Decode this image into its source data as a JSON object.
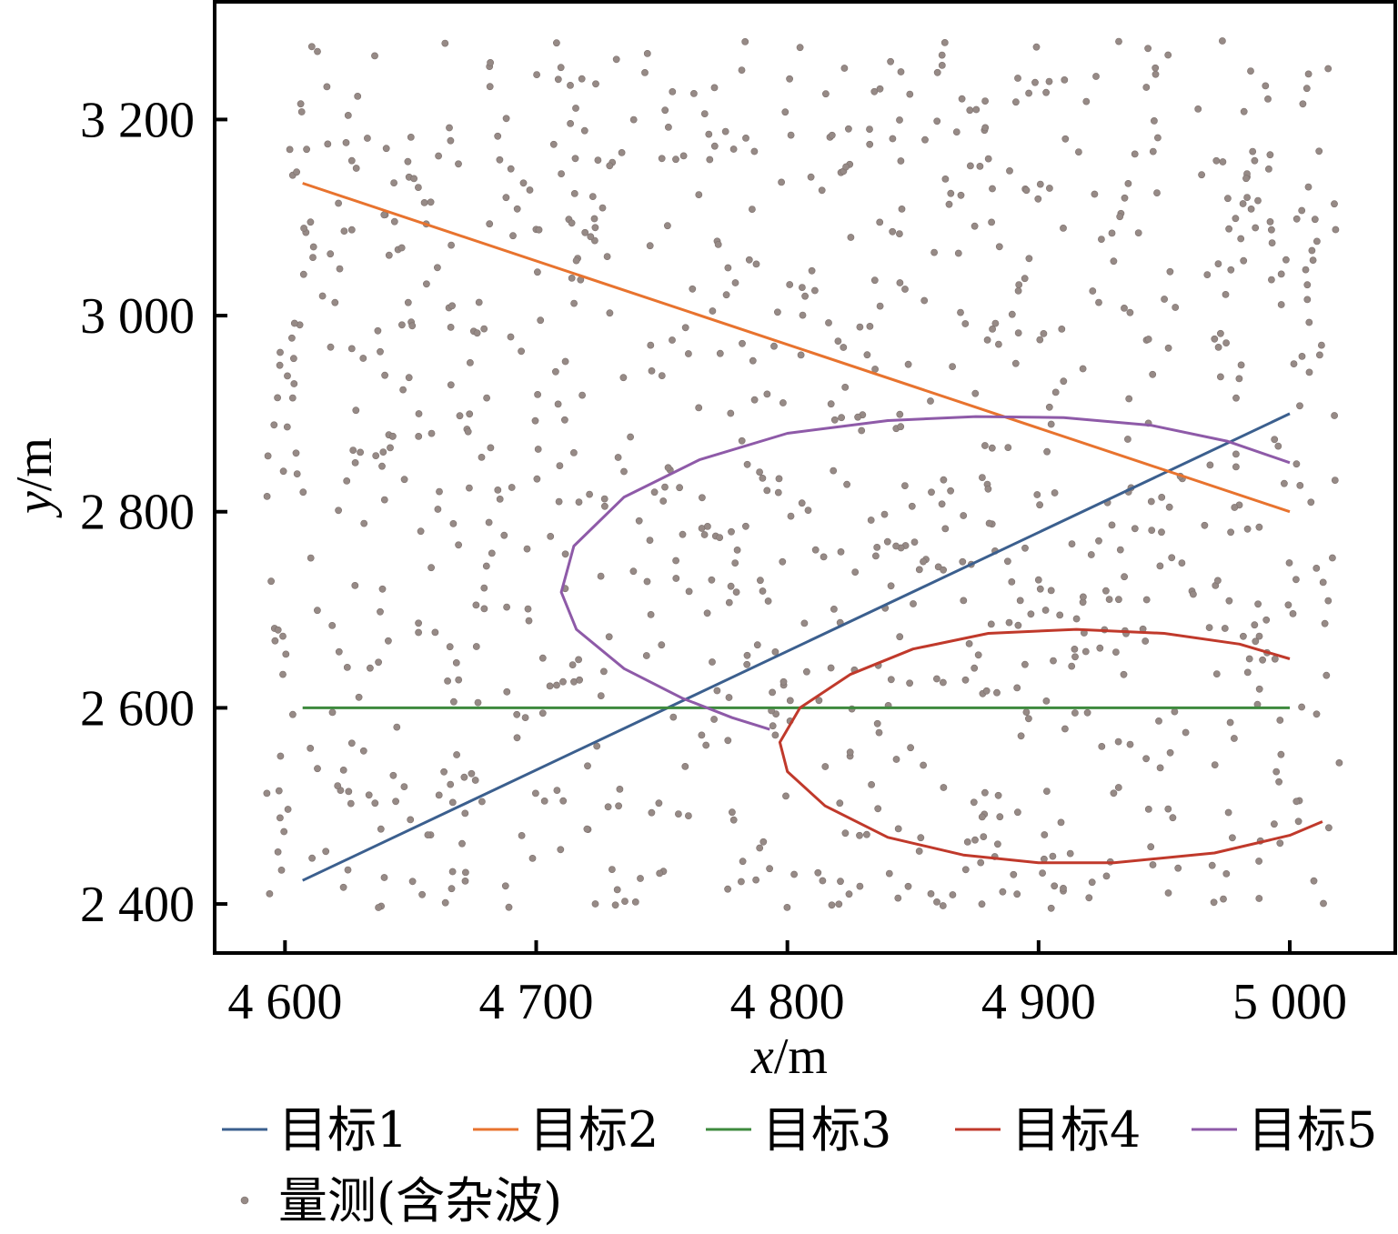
{
  "chart_data": {
    "type": "line",
    "xlabel": {
      "var": "x",
      "unit": "/m"
    },
    "ylabel": {
      "var": "y",
      "unit": "/m"
    },
    "xlim": [
      4572,
      5042
    ],
    "ylim": [
      2350,
      3320
    ],
    "xticks": [
      4600,
      4700,
      4800,
      4900,
      5000
    ],
    "yticks": [
      2400,
      2600,
      2800,
      3000,
      3200
    ],
    "xtick_labels": [
      "4 600",
      "4 700",
      "4 800",
      "4 900",
      "5 000"
    ],
    "ytick_labels": [
      "2 400",
      "2 600",
      "2 800",
      "3 000",
      "3 200"
    ],
    "grid": false,
    "legend_position": "bottom",
    "series": [
      {
        "name": "目标1",
        "color": "#3b5f8e",
        "x": [
          4607,
          5000
        ],
        "y": [
          2424,
          2900
        ]
      },
      {
        "name": "目标2",
        "color": "#e8732e",
        "x": [
          4607,
          5000
        ],
        "y": [
          3135,
          2800
        ]
      },
      {
        "name": "目标3",
        "color": "#3e8a3e",
        "x": [
          4607,
          5000
        ],
        "y": [
          2600,
          2600
        ]
      },
      {
        "name": "目标4",
        "color": "#c0392b",
        "x": [
          5013,
          5000,
          4970,
          4930,
          4900,
          4870,
          4840,
          4815,
          4800,
          4797,
          4805,
          4825,
          4850,
          4880,
          4915,
          4950,
          4980,
          5000
        ],
        "y": [
          2484,
          2470,
          2452,
          2442,
          2442,
          2450,
          2468,
          2500,
          2535,
          2565,
          2600,
          2634,
          2660,
          2676,
          2680,
          2676,
          2665,
          2650
        ]
      },
      {
        "name": "目标5",
        "color": "#8e5aa8",
        "x": [
          5000,
          4975,
          4945,
          4910,
          4875,
          4840,
          4800,
          4765,
          4735,
          4715,
          4710,
          4716,
          4735,
          4758,
          4778,
          4793
        ],
        "y": [
          2850,
          2872,
          2888,
          2896,
          2897,
          2893,
          2880,
          2853,
          2815,
          2765,
          2718,
          2680,
          2640,
          2610,
          2590,
          2578
        ]
      }
    ],
    "measurements": {
      "name": "量测(含杂波)",
      "color": "#968a86",
      "count": 1000,
      "x_range": [
        4592,
        5020
      ],
      "y_range": [
        2395,
        3282
      ]
    }
  }
}
